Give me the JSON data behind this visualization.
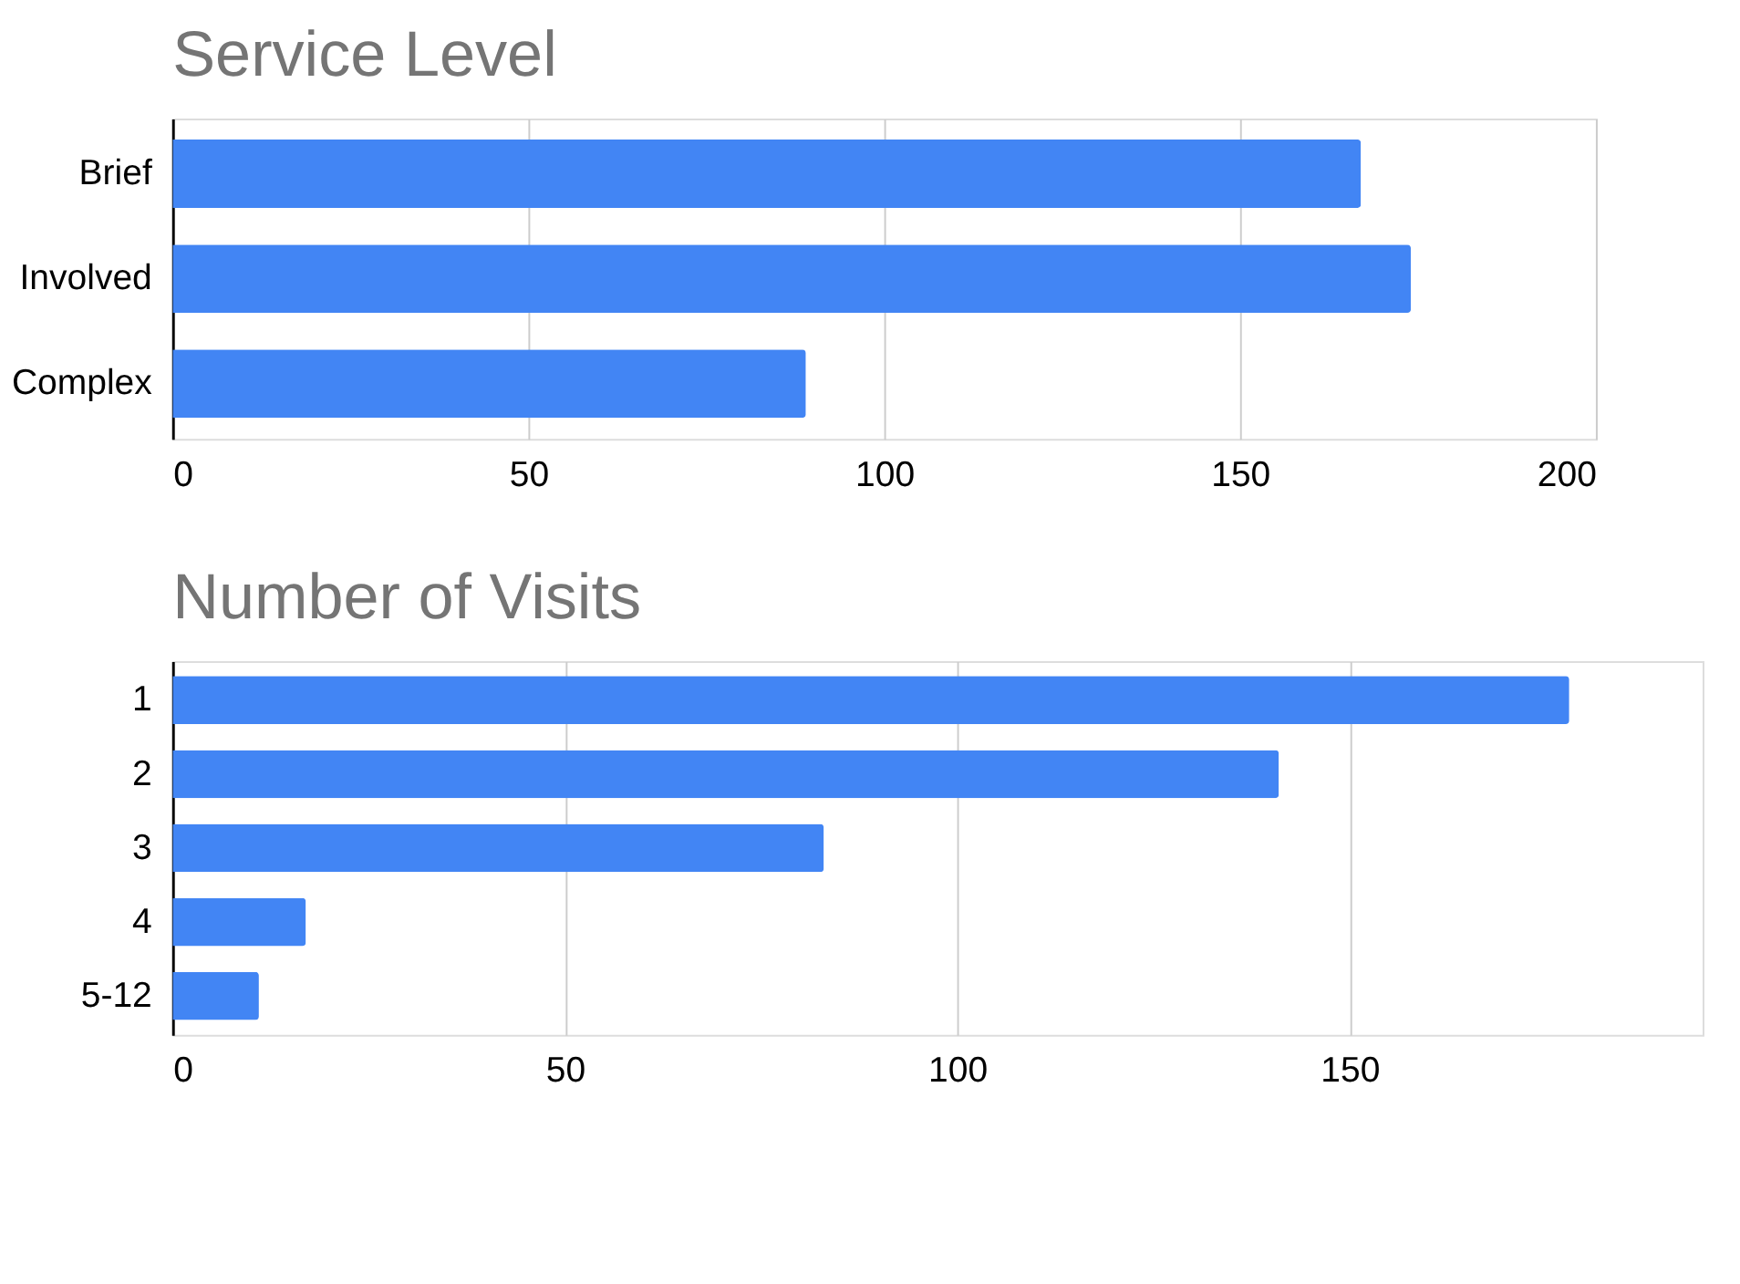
{
  "chart_data": [
    {
      "type": "bar",
      "orientation": "horizontal",
      "title": "Service Level",
      "categories": [
        "Brief",
        "Involved",
        "Complex"
      ],
      "values": [
        167,
        174,
        89
      ],
      "color": "#4285f4",
      "xlim": [
        0,
        200
      ],
      "xticks": [
        0,
        50,
        100,
        150,
        200
      ],
      "grid": "x"
    },
    {
      "type": "bar",
      "orientation": "horizontal",
      "title": "Number of Visits",
      "categories": [
        "1",
        "2",
        "3",
        "4",
        "5-12"
      ],
      "values": [
        178,
        141,
        83,
        17,
        11
      ],
      "color": "#4285f4",
      "xlim": [
        0,
        195
      ],
      "xticks": [
        0,
        50,
        100,
        150
      ],
      "grid": "x"
    }
  ]
}
